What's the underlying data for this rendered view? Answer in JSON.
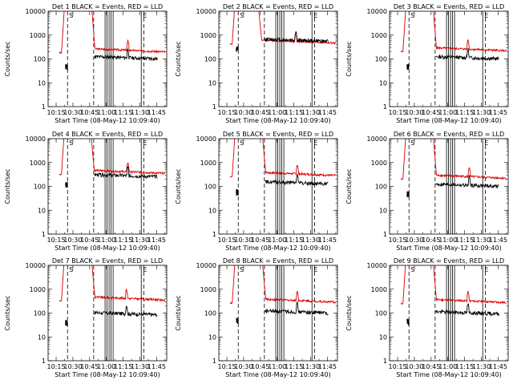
{
  "figure": {
    "title_prefix": "Det",
    "suptitle": "Start Time (08-May-12 10:09:40)"
  },
  "chart_data": {
    "type": "line",
    "ylabel": "Counts/sec",
    "xlabel": "Start Time (08-May-12 10:09:40)",
    "xlim": [
      10.13,
      11.9
    ],
    "ylim": [
      1,
      10000
    ],
    "yscale": "log",
    "x_tick_labels": [
      "10:15",
      "10:30",
      "10:45",
      "11:00",
      "11:15",
      "11:30",
      "11:45"
    ],
    "x_ticks": [
      10.25,
      10.5,
      10.75,
      11.0,
      11.25,
      11.5,
      11.75
    ],
    "y_tick_labels": [
      "1",
      "10",
      "100",
      "1000",
      "10000"
    ],
    "y_ticks": [
      1,
      10,
      100,
      1000,
      10000
    ],
    "series_legend": "BLACK = Events, RED = LLD",
    "colors": {
      "events": "#000000",
      "lld": "#dd0000"
    },
    "markers": {
      "S": "S",
      "E": "E"
    },
    "panels": [
      {
        "title": "Det 1 BLACK = Events, RED = LLD",
        "det": "1",
        "base": 180,
        "event_base": 120,
        "peak_end": 10.78,
        "flare": 11.32
      },
      {
        "title": "Det 2 BLACK = Events, RED = LLD",
        "det": "2",
        "base": 420,
        "event_base": 650,
        "peak_end": 10.72,
        "flare": 11.28
      },
      {
        "title": "Det 3 BLACK = Events, RED = LLD",
        "det": "3",
        "base": 200,
        "event_base": 120,
        "peak_end": 10.78,
        "flare": 11.3
      },
      {
        "title": "Det 4 BLACK = Events, RED = LLD",
        "det": "4",
        "base": 320,
        "event_base": 300,
        "peak_end": 10.77,
        "flare": 11.32
      },
      {
        "title": "Det 5 BLACK = Events, RED = LLD",
        "det": "5",
        "base": 260,
        "event_base": 150,
        "peak_end": 10.78,
        "flare": 11.3
      },
      {
        "title": "Det 6 BLACK = Events, RED = LLD",
        "det": "6",
        "base": 200,
        "event_base": 120,
        "peak_end": 10.78,
        "flare": 11.32
      },
      {
        "title": "Det 7 BLACK = Events, RED = LLD",
        "det": "7",
        "base": 320,
        "event_base": 100,
        "peak_end": 10.78,
        "flare": 11.3
      },
      {
        "title": "Det 8 BLACK = Events, RED = LLD",
        "det": "8",
        "base": 260,
        "event_base": 120,
        "peak_end": 10.78,
        "flare": 11.3
      },
      {
        "title": "Det 9 BLACK = Events, RED = LLD",
        "det": "9",
        "base": 250,
        "event_base": 110,
        "peak_end": 10.78,
        "flare": 11.3
      }
    ],
    "saturation_start": 10.33,
    "dashed_lines": [
      10.42,
      10.81,
      11.56
    ],
    "solid_lines": [
      10.98,
      11.01,
      11.04,
      11.07,
      11.1,
      11.52
    ]
  }
}
